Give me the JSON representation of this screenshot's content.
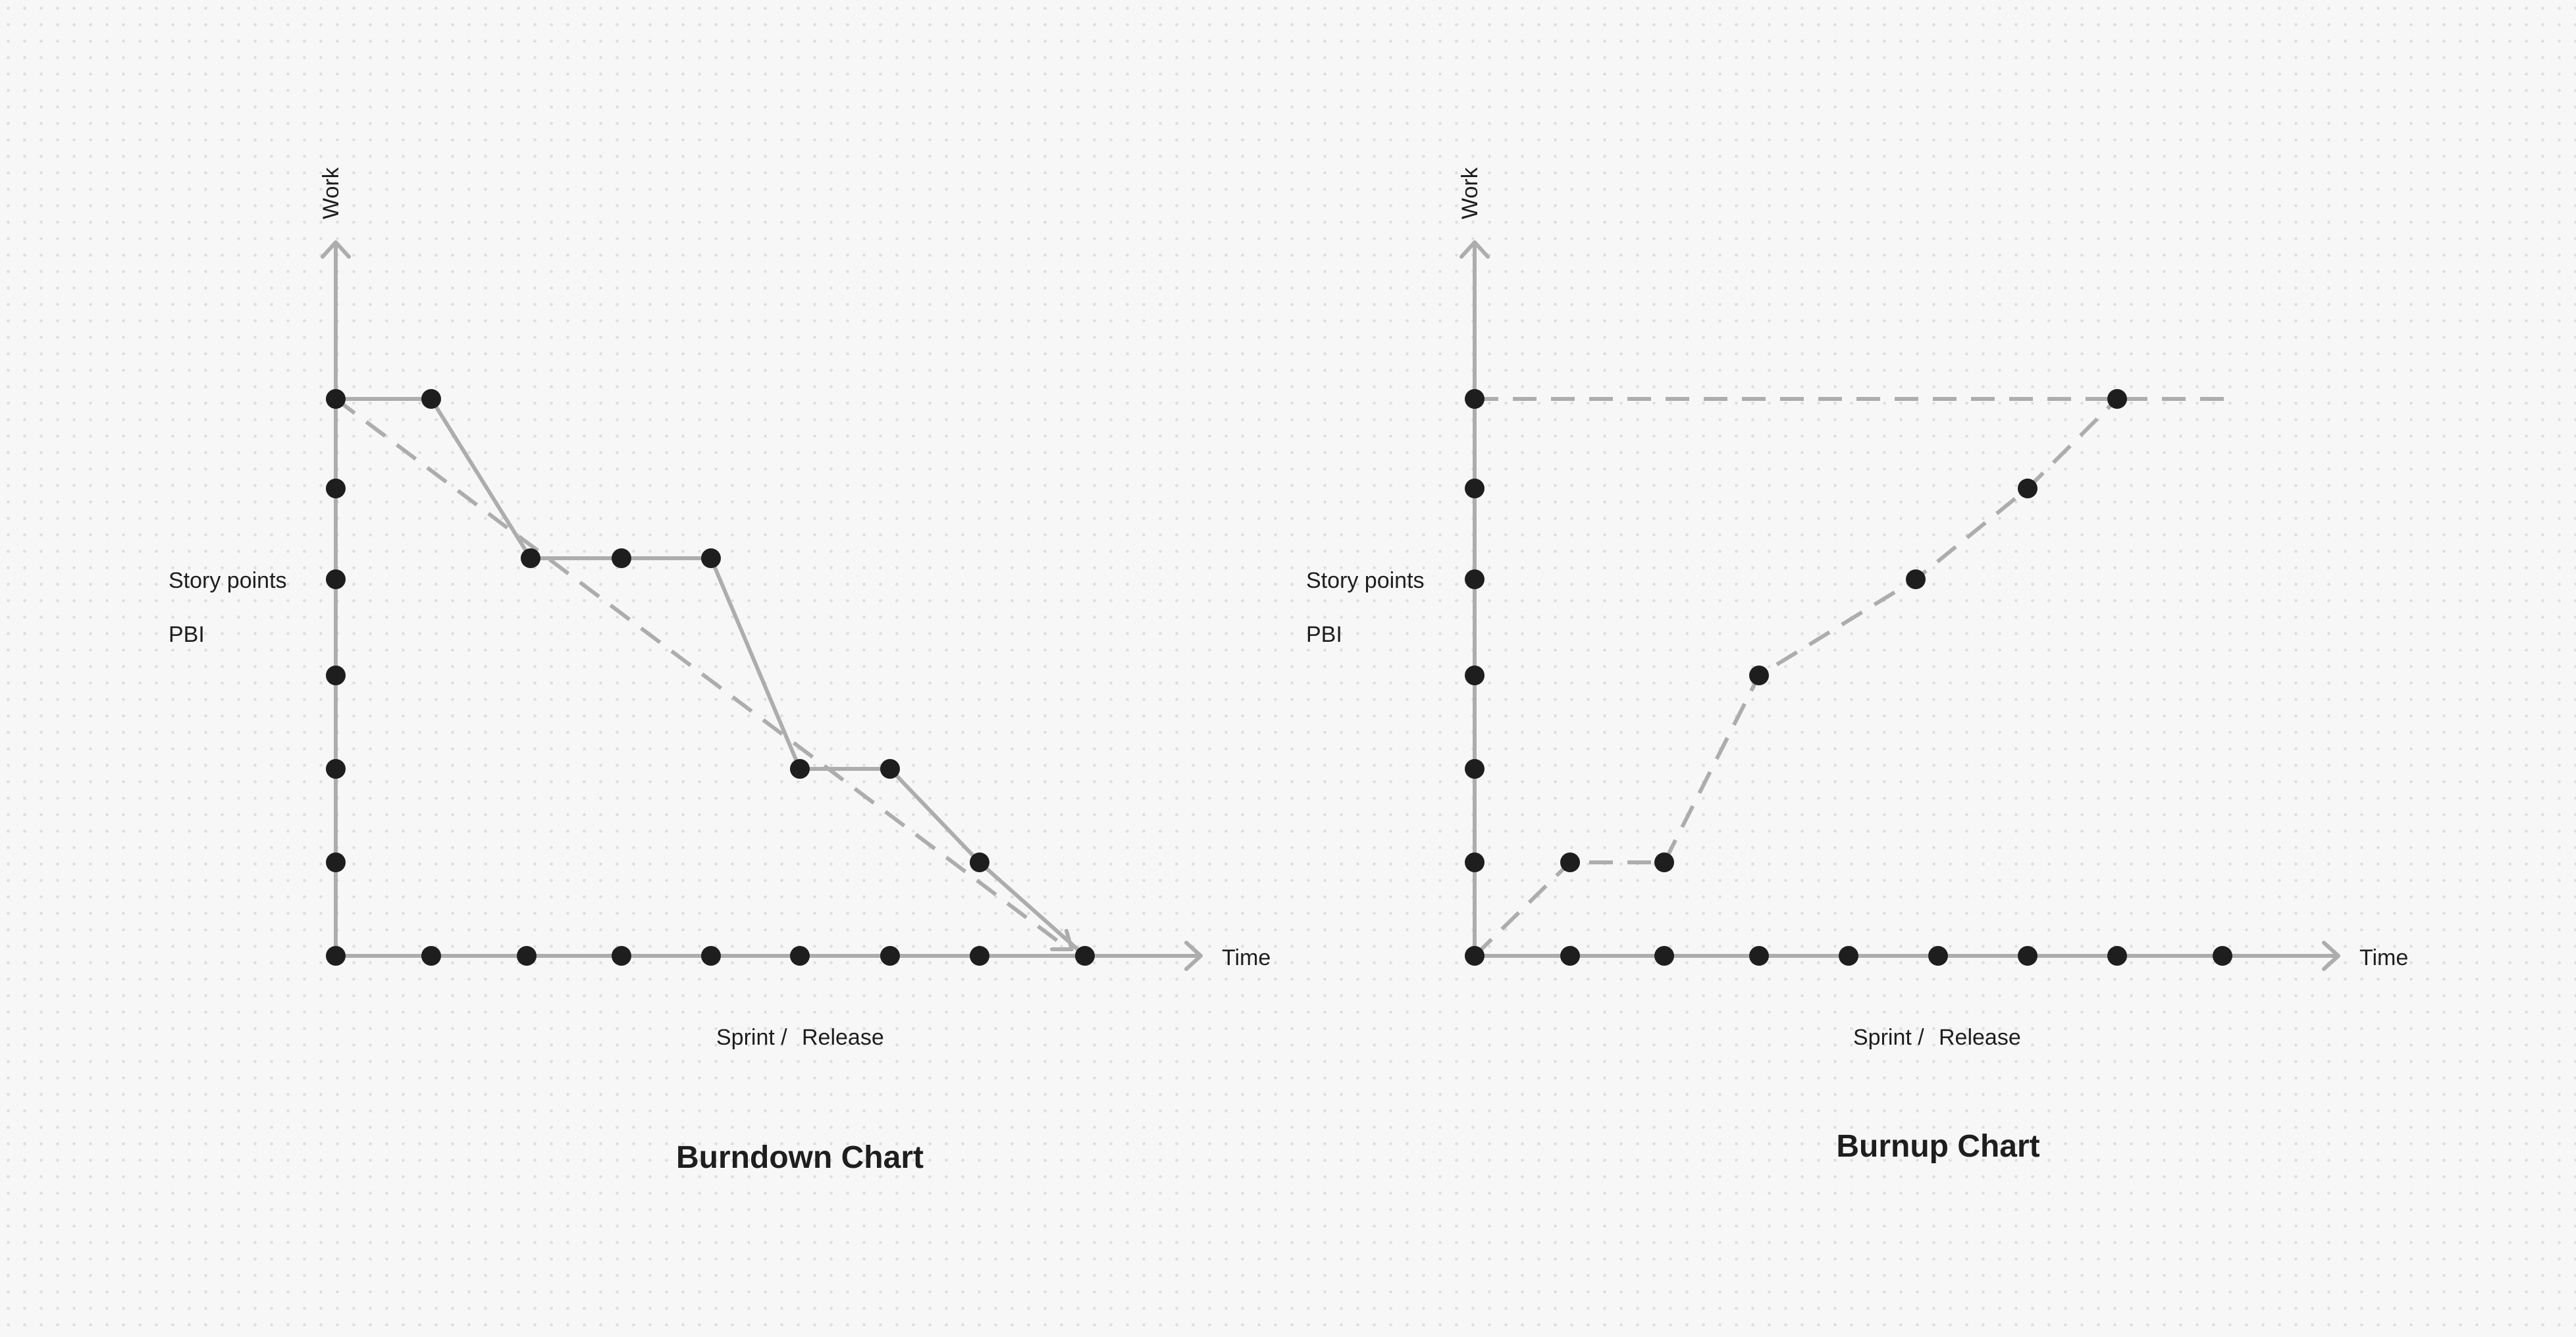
{
  "diagrams": [
    {
      "key": "burndown",
      "title": "Burndown Chart",
      "y_axis_label": "Work",
      "x_axis_label": "Time",
      "side_labels": [
        "Story points",
        "PBI"
      ],
      "bottom_label_parts": [
        "Sprint /",
        "Release"
      ]
    },
    {
      "key": "burnup",
      "title": "Burnup Chart",
      "y_axis_label": "Work",
      "x_axis_label": "Time",
      "side_labels": [
        "Story points",
        "PBI"
      ],
      "bottom_label_parts": [
        "Sprint /",
        "Release"
      ]
    }
  ],
  "colors": {
    "background": "#f7f7f7",
    "grid_dot": "#dedede",
    "line": "#adadad",
    "point": "#1e1e1e",
    "text": "#1e1e1e"
  }
}
